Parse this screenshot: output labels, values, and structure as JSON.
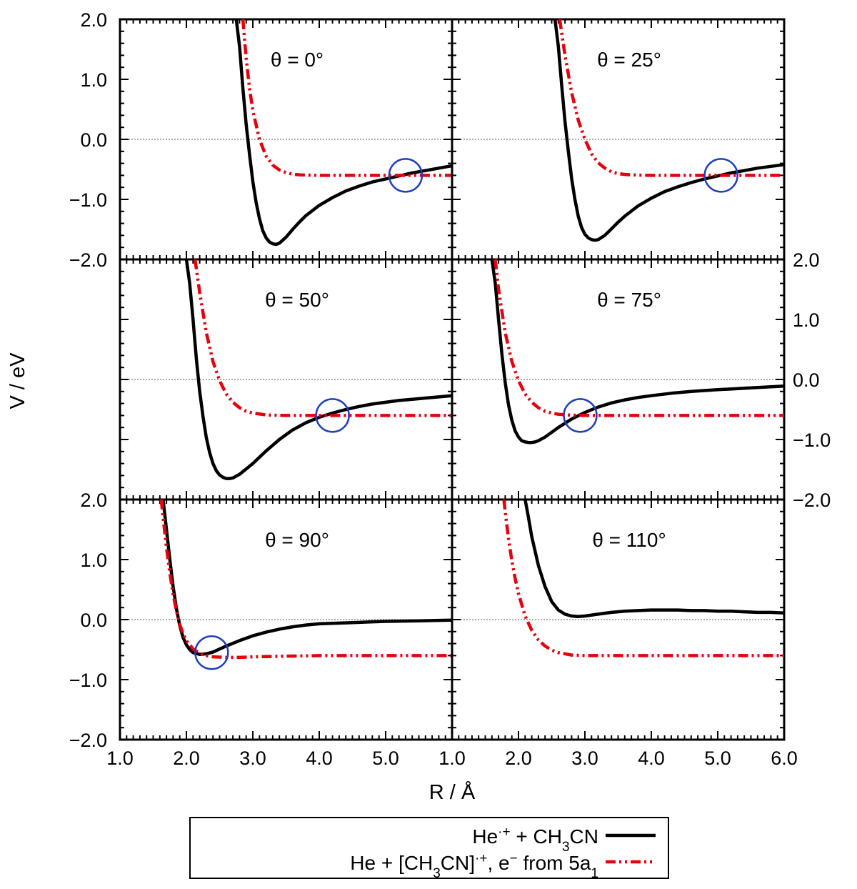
{
  "chart_data": {
    "type": "line",
    "ylabel": "V / eV",
    "xlabel": "R / Å",
    "xlim": [
      1.0,
      6.0
    ],
    "ylim": [
      -2.0,
      2.0
    ],
    "x_tick_labels_left": [
      "1.0",
      "2.0",
      "3.0",
      "4.0",
      "5.0"
    ],
    "x_tick_labels_right": [
      "1.0",
      "2.0",
      "3.0",
      "4.0",
      "5.0",
      "6.0"
    ],
    "y_tick_labels": [
      "2.0",
      "1.0",
      "0.0",
      "−1.0",
      "−2.0"
    ],
    "legend": {
      "placement": "bottom-center",
      "entries": [
        {
          "label_parts": [
            "He",
            "·+",
            " + CH",
            "3",
            "CN"
          ],
          "style": "solid",
          "color": "#000000"
        },
        {
          "label_parts": [
            "He + [CH",
            "3",
            "CN]",
            "·+",
            ", e",
            "−",
            " from 5a",
            "1"
          ],
          "style": "dash-dot-dot",
          "color": "#e8000b"
        }
      ]
    },
    "colors": {
      "series_1": "#000000",
      "series_2": "#e8000b",
      "crossing_marker": "#1f3fbf",
      "zero_line": "#555555"
    },
    "panels": [
      {
        "label": "θ = 0°",
        "crossing": {
          "x": 5.3,
          "y": -0.6
        },
        "series": [
          {
            "name": "He·+ + CH3CN",
            "x": [
              2.75,
              2.8,
              2.85,
              2.9,
              2.95,
              3.0,
              3.05,
              3.1,
              3.15,
              3.2,
              3.25,
              3.3,
              3.35,
              3.4,
              3.5,
              3.6,
              3.7,
              3.8,
              4.0,
              4.2,
              4.4,
              4.6,
              4.8,
              5.0,
              5.2,
              5.4,
              5.6,
              5.8,
              6.0
            ],
            "y": [
              2.0,
              1.55,
              0.85,
              0.25,
              -0.25,
              -0.7,
              -1.05,
              -1.32,
              -1.52,
              -1.64,
              -1.71,
              -1.74,
              -1.75,
              -1.73,
              -1.63,
              -1.5,
              -1.38,
              -1.27,
              -1.1,
              -0.97,
              -0.86,
              -0.78,
              -0.71,
              -0.66,
              -0.61,
              -0.56,
              -0.52,
              -0.48,
              -0.44
            ]
          },
          {
            "name": "He + [CH3CN]·+, e− from 5a1",
            "x": [
              2.85,
              2.9,
              2.95,
              3.0,
              3.1,
              3.2,
              3.3,
              3.4,
              3.5,
              3.6,
              3.7,
              3.8,
              4.0,
              4.5,
              5.0,
              5.5,
              6.0
            ],
            "y": [
              2.0,
              1.35,
              0.85,
              0.48,
              0.0,
              -0.28,
              -0.43,
              -0.51,
              -0.555,
              -0.58,
              -0.59,
              -0.595,
              -0.6,
              -0.6,
              -0.6,
              -0.6,
              -0.6
            ]
          }
        ]
      },
      {
        "label": "θ = 25°",
        "crossing": {
          "x": 5.05,
          "y": -0.6
        },
        "series": [
          {
            "name": "He·+ + CH3CN",
            "x": [
              2.55,
              2.6,
              2.65,
              2.7,
              2.75,
              2.8,
              2.85,
              2.9,
              2.95,
              3.0,
              3.05,
              3.1,
              3.15,
              3.2,
              3.3,
              3.4,
              3.5,
              3.6,
              3.8,
              4.0,
              4.2,
              4.4,
              4.6,
              4.8,
              5.0,
              5.2,
              5.4,
              5.6,
              5.8,
              6.0
            ],
            "y": [
              2.0,
              1.55,
              0.9,
              0.3,
              -0.2,
              -0.65,
              -1.0,
              -1.28,
              -1.47,
              -1.58,
              -1.64,
              -1.67,
              -1.68,
              -1.67,
              -1.6,
              -1.49,
              -1.38,
              -1.28,
              -1.11,
              -0.98,
              -0.87,
              -0.79,
              -0.72,
              -0.66,
              -0.61,
              -0.56,
              -0.52,
              -0.48,
              -0.45,
              -0.42
            ]
          },
          {
            "name": "He + [CH3CN]·+, e− from 5a1",
            "x": [
              2.62,
              2.7,
              2.8,
              2.9,
              3.0,
              3.1,
              3.2,
              3.3,
              3.4,
              3.5,
              3.6,
              3.8,
              4.0,
              4.5,
              5.0,
              5.5,
              6.0
            ],
            "y": [
              2.0,
              1.4,
              0.78,
              0.32,
              0.0,
              -0.24,
              -0.39,
              -0.48,
              -0.54,
              -0.57,
              -0.585,
              -0.597,
              -0.6,
              -0.6,
              -0.6,
              -0.6,
              -0.6
            ]
          }
        ]
      },
      {
        "label": "θ = 50°",
        "crossing": {
          "x": 4.2,
          "y": -0.6
        },
        "series": [
          {
            "name": "He·+ + CH3CN",
            "x": [
              2.0,
              2.05,
              2.1,
              2.15,
              2.2,
              2.25,
              2.3,
              2.35,
              2.4,
              2.45,
              2.5,
              2.55,
              2.6,
              2.65,
              2.7,
              2.8,
              2.9,
              3.0,
              3.2,
              3.4,
              3.6,
              3.8,
              4.0,
              4.2,
              4.4,
              4.6,
              4.8,
              5.0,
              5.2,
              5.4,
              5.6,
              5.8,
              6.0
            ],
            "y": [
              2.0,
              1.6,
              1.0,
              0.35,
              -0.2,
              -0.62,
              -0.97,
              -1.22,
              -1.4,
              -1.52,
              -1.59,
              -1.63,
              -1.65,
              -1.65,
              -1.64,
              -1.58,
              -1.49,
              -1.4,
              -1.19,
              -1.0,
              -0.84,
              -0.72,
              -0.63,
              -0.56,
              -0.5,
              -0.45,
              -0.41,
              -0.38,
              -0.35,
              -0.33,
              -0.31,
              -0.29,
              -0.27
            ]
          },
          {
            "name": "He + [CH3CN]·+, e− from 5a1",
            "x": [
              2.13,
              2.2,
              2.3,
              2.4,
              2.5,
              2.6,
              2.7,
              2.8,
              2.9,
              3.0,
              3.2,
              3.4,
              3.6,
              4.0,
              5.0,
              6.0
            ],
            "y": [
              2.0,
              1.45,
              0.78,
              0.3,
              -0.02,
              -0.24,
              -0.38,
              -0.47,
              -0.53,
              -0.56,
              -0.59,
              -0.598,
              -0.6,
              -0.6,
              -0.6,
              -0.6
            ]
          }
        ]
      },
      {
        "label": "θ = 75°",
        "crossing": {
          "x": 2.93,
          "y": -0.6
        },
        "series": [
          {
            "name": "He·+ + CH3CN",
            "x": [
              1.6,
              1.65,
              1.7,
              1.75,
              1.8,
              1.85,
              1.9,
              1.95,
              2.0,
              2.05,
              2.1,
              2.15,
              2.2,
              2.25,
              2.3,
              2.4,
              2.5,
              2.6,
              2.8,
              3.0,
              3.2,
              3.4,
              3.6,
              3.8,
              4.0,
              4.3,
              4.6,
              5.0,
              5.5,
              6.0
            ],
            "y": [
              2.0,
              1.6,
              1.0,
              0.42,
              -0.05,
              -0.42,
              -0.68,
              -0.86,
              -0.96,
              -1.02,
              -1.04,
              -1.05,
              -1.05,
              -1.04,
              -1.02,
              -0.96,
              -0.88,
              -0.8,
              -0.66,
              -0.55,
              -0.46,
              -0.39,
              -0.34,
              -0.3,
              -0.27,
              -0.23,
              -0.2,
              -0.17,
              -0.14,
              -0.11
            ]
          },
          {
            "name": "He + [CH3CN]·+, e− from 5a1",
            "x": [
              1.65,
              1.7,
              1.8,
              1.9,
              2.0,
              2.1,
              2.2,
              2.3,
              2.4,
              2.5,
              2.6,
              2.8,
              3.0,
              3.5,
              4.0,
              5.0,
              6.0
            ],
            "y": [
              2.0,
              1.5,
              0.78,
              0.3,
              -0.02,
              -0.24,
              -0.38,
              -0.47,
              -0.53,
              -0.56,
              -0.58,
              -0.595,
              -0.6,
              -0.6,
              -0.6,
              -0.6,
              -0.6
            ]
          }
        ]
      },
      {
        "label": "θ = 90°",
        "crossing": {
          "x": 2.38,
          "y": -0.55
        },
        "series": [
          {
            "name": "He·+ + CH3CN",
            "x": [
              1.65,
              1.7,
              1.75,
              1.8,
              1.85,
              1.9,
              1.95,
              2.0,
              2.05,
              2.1,
              2.2,
              2.3,
              2.4,
              2.5,
              2.6,
              2.8,
              3.0,
              3.2,
              3.4,
              3.6,
              3.8,
              4.0,
              4.5,
              5.0,
              5.5,
              6.0
            ],
            "y": [
              2.0,
              1.5,
              1.0,
              0.55,
              0.18,
              -0.1,
              -0.3,
              -0.42,
              -0.5,
              -0.55,
              -0.58,
              -0.57,
              -0.54,
              -0.49,
              -0.44,
              -0.35,
              -0.27,
              -0.21,
              -0.16,
              -0.12,
              -0.09,
              -0.07,
              -0.05,
              -0.03,
              -0.02,
              -0.01
            ]
          },
          {
            "name": "He + [CH3CN]·+, e− from 5a1",
            "x": [
              1.62,
              1.65,
              1.7,
              1.75,
              1.8,
              1.85,
              1.9,
              1.95,
              2.0,
              2.1,
              2.2,
              2.3,
              2.4,
              2.6,
              2.8,
              3.0,
              3.5,
              4.0,
              5.0,
              6.0
            ],
            "y": [
              2.0,
              1.7,
              1.2,
              0.78,
              0.42,
              0.14,
              -0.08,
              -0.24,
              -0.35,
              -0.49,
              -0.56,
              -0.6,
              -0.62,
              -0.63,
              -0.63,
              -0.62,
              -0.61,
              -0.6,
              -0.6,
              -0.6
            ]
          }
        ]
      },
      {
        "label": "θ = 110°",
        "crossing": null,
        "series": [
          {
            "name": "He·+ + CH3CN",
            "x": [
              2.1,
              2.15,
              2.2,
              2.3,
              2.4,
              2.5,
              2.6,
              2.7,
              2.8,
              2.9,
              3.0,
              3.2,
              3.4,
              3.6,
              3.8,
              4.0,
              4.2,
              4.4,
              4.6,
              4.8,
              5.0,
              5.2,
              5.4,
              5.6,
              5.8,
              6.0
            ],
            "y": [
              2.0,
              1.7,
              1.38,
              0.9,
              0.55,
              0.3,
              0.16,
              0.09,
              0.06,
              0.05,
              0.06,
              0.09,
              0.12,
              0.14,
              0.15,
              0.16,
              0.16,
              0.16,
              0.15,
              0.15,
              0.14,
              0.14,
              0.13,
              0.12,
              0.12,
              0.11
            ]
          },
          {
            "name": "He + [CH3CN]·+, e− from 5a1",
            "x": [
              1.78,
              1.8,
              1.85,
              1.9,
              1.95,
              2.0,
              2.1,
              2.2,
              2.3,
              2.4,
              2.5,
              2.6,
              2.8,
              3.0,
              3.5,
              4.0,
              5.0,
              6.0
            ],
            "y": [
              2.0,
              1.8,
              1.35,
              0.98,
              0.68,
              0.43,
              0.06,
              -0.18,
              -0.34,
              -0.44,
              -0.51,
              -0.55,
              -0.59,
              -0.6,
              -0.6,
              -0.6,
              -0.6,
              -0.6
            ]
          }
        ]
      }
    ]
  }
}
